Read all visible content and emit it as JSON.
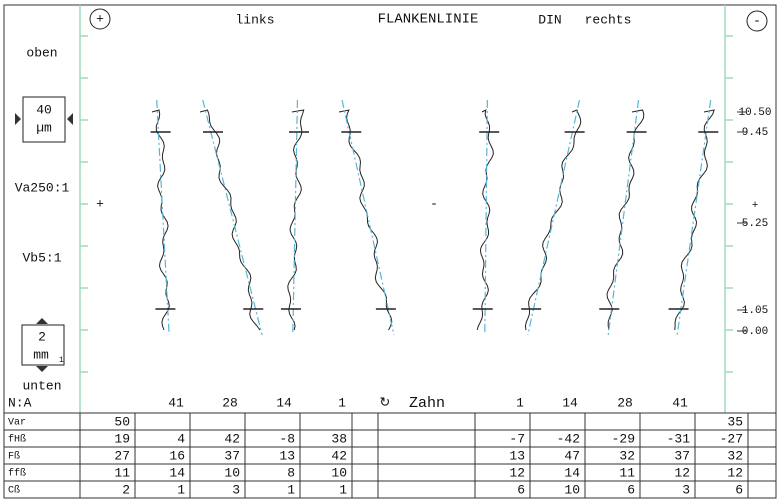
{
  "header": {
    "plus": "+",
    "left": "links",
    "title": "FLANKENLINIE",
    "standard": "DIN",
    "right": "rechts",
    "minus": "-"
  },
  "left_labels": {
    "top": "oben",
    "scale_value": "40",
    "scale_unit": "µm",
    "va": "Va250:1",
    "vb": "Vb5:1",
    "length_value": "2",
    "length_unit": "mm",
    "length_sub": "1",
    "bottom": "unten"
  },
  "right_scale": [
    "10.50",
    "9.45",
    "+",
    "5.25",
    "1.05",
    "0.00"
  ],
  "center_signs": [
    "+",
    "-"
  ],
  "teeth_row": {
    "label": "N:A",
    "left": [
      "41",
      "28",
      "14",
      "1"
    ],
    "symbol": "↻",
    "zahn": "Zahn",
    "right": [
      "1",
      "14",
      "28",
      "41"
    ]
  },
  "table": {
    "rows": [
      {
        "label": "Var",
        "total_left": 50,
        "left": [],
        "right": [],
        "total_right": 35
      },
      {
        "label": "fHß",
        "total_left": 19,
        "left": [
          4,
          42,
          -8,
          38
        ],
        "right": [
          -7,
          -42,
          -29,
          -31
        ],
        "total_right": -27
      },
      {
        "label": "Fß",
        "total_left": 27,
        "left": [
          16,
          37,
          13,
          42
        ],
        "right": [
          13,
          47,
          32,
          37
        ],
        "total_right": 32
      },
      {
        "label": "ffß",
        "total_left": 11,
        "left": [
          14,
          10,
          8,
          10
        ],
        "right": [
          12,
          14,
          11,
          12
        ],
        "total_right": 12
      },
      {
        "label": "Cß",
        "total_left": 2,
        "left": [
          1,
          3,
          1,
          1
        ],
        "right": [
          6,
          10,
          6,
          3
        ],
        "total_right": 6
      }
    ]
  }
}
